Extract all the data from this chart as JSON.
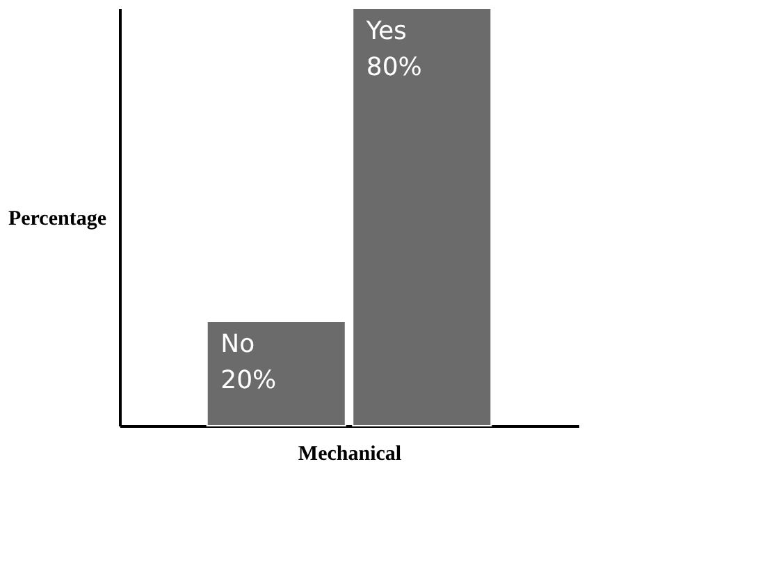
{
  "chart_data": {
    "type": "bar",
    "xlabel": "Mechanical",
    "ylabel": "Percentage",
    "categories": [
      "No",
      "Yes"
    ],
    "values": [
      20,
      80
    ],
    "value_labels": [
      "20%",
      "80%"
    ],
    "color": "#6b6b6b",
    "grid": false,
    "tick_labels": false
  }
}
